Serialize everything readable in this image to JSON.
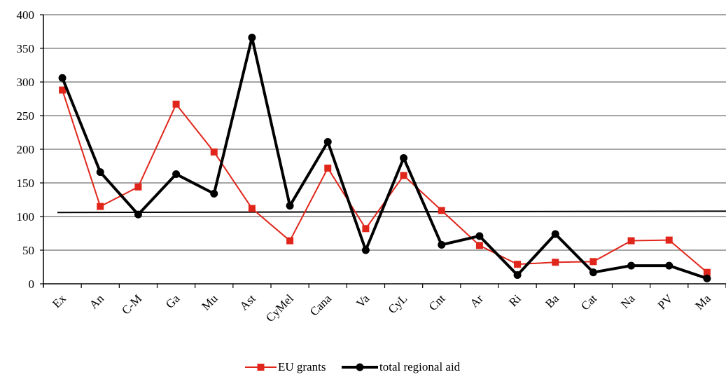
{
  "chart_data": {
    "type": "line",
    "categories": [
      "Ex",
      "An",
      "C-M",
      "Ga",
      "Mu",
      "Ast",
      "CyMel",
      "Cana",
      "Va",
      "CyL",
      "Cnt",
      "Ar",
      "Ri",
      "Ba",
      "Cat",
      "Na",
      "PV",
      "Ma"
    ],
    "series": [
      {
        "name": "EU grants",
        "color": "#e0261b",
        "marker": "square",
        "values": [
          288,
          115,
          144,
          267,
          196,
          112,
          64,
          172,
          82,
          161,
          109,
          57,
          29,
          32,
          33,
          64,
          65,
          17
        ]
      },
      {
        "name": "total regional aid",
        "color": "#000000",
        "marker": "circle",
        "values": [
          306,
          166,
          103,
          163,
          134,
          366,
          116,
          211,
          50,
          187,
          58,
          71,
          13,
          74,
          17,
          27,
          27,
          8
        ]
      }
    ],
    "reference_line": {
      "start": 106,
      "end": 108,
      "color": "#000000"
    },
    "ylim": [
      0,
      400
    ],
    "yticks": [
      "0",
      "50",
      "100",
      "150",
      "200",
      "250",
      "300",
      "350",
      "400"
    ],
    "grid": true,
    "grid_color": "#a6a6a6",
    "legend_position": "bottom-center"
  }
}
